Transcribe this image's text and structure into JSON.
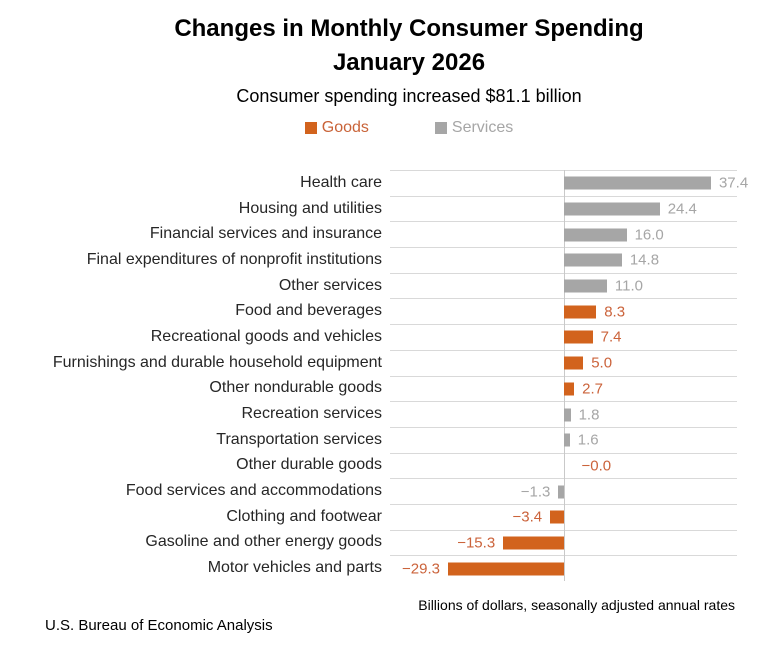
{
  "header": {
    "title_line1": "Changes in Monthly Consumer Spending",
    "title_line2": "January 2026",
    "subtitle": "Consumer spending increased $81.1 billion"
  },
  "legend": {
    "items": [
      {
        "label": "Goods",
        "swatch_color": "#d2631d",
        "text_color": "#c96338"
      },
      {
        "label": "Services",
        "swatch_color": "#a6a6a6",
        "text_color": "#a6a6a6"
      }
    ]
  },
  "chart_data": {
    "type": "bar",
    "orientation": "horizontal",
    "title": "Changes in Monthly Consumer Spending",
    "subtitle": "January 2026",
    "xlabel": "Billions of dollars, seasonally adjusted annual rates",
    "xlim": [
      -44,
      44
    ],
    "grid": "row-separator-lines",
    "legend_position": "top",
    "series_colors": {
      "Goods": "#d2631d",
      "Services": "#a6a6a6"
    },
    "label_colors": {
      "Goods": "#cb633b",
      "Services": "#a6a6a6"
    },
    "rows": [
      {
        "label": "Health care",
        "series": "Services",
        "value": 37.4,
        "display": "37.4"
      },
      {
        "label": "Housing and utilities",
        "series": "Services",
        "value": 24.4,
        "display": "24.4"
      },
      {
        "label": "Financial services and insurance",
        "series": "Services",
        "value": 16.0,
        "display": "16.0"
      },
      {
        "label": "Final expenditures of nonprofit institutions",
        "series": "Services",
        "value": 14.8,
        "display": "14.8"
      },
      {
        "label": "Other services",
        "series": "Services",
        "value": 11.0,
        "display": "11.0"
      },
      {
        "label": "Food and beverages",
        "series": "Goods",
        "value": 8.3,
        "display": "8.3"
      },
      {
        "label": "Recreational goods and vehicles",
        "series": "Goods",
        "value": 7.4,
        "display": "7.4"
      },
      {
        "label": "Furnishings and durable household equipment",
        "series": "Goods",
        "value": 5.0,
        "display": "5.0"
      },
      {
        "label": "Other nondurable goods",
        "series": "Goods",
        "value": 2.7,
        "display": "2.7"
      },
      {
        "label": "Recreation services",
        "series": "Services",
        "value": 1.8,
        "display": "1.8"
      },
      {
        "label": "Transportation services",
        "series": "Services",
        "value": 1.6,
        "display": "1.6"
      },
      {
        "label": "Other durable goods",
        "series": "Goods",
        "value": -0.0,
        "display": "−0.0"
      },
      {
        "label": "Food services and accommodations",
        "series": "Services",
        "value": -1.3,
        "display": "−1.3"
      },
      {
        "label": "Clothing and footwear",
        "series": "Goods",
        "value": -3.4,
        "display": "−3.4"
      },
      {
        "label": "Gasoline and other energy goods",
        "series": "Goods",
        "value": -15.3,
        "display": "−15.3"
      },
      {
        "label": "Motor vehicles and parts",
        "series": "Goods",
        "value": -29.3,
        "display": "−29.3"
      }
    ]
  },
  "footer": {
    "axis_note": "Billions of dollars, seasonally adjusted annual rates",
    "source": "U.S. Bureau of Economic Analysis"
  }
}
